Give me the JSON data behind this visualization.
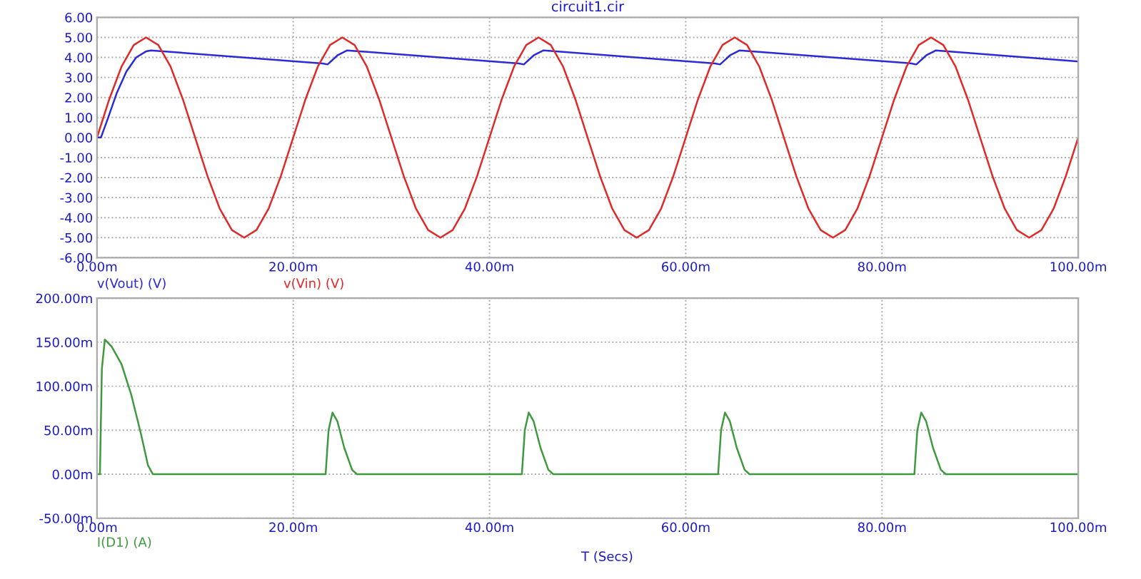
{
  "chart_data": [
    {
      "type": "line",
      "title": "circuit1.cir",
      "grid": true,
      "legend": "bottom left",
      "xlim": [
        0,
        100
      ],
      "xticks": [
        {
          "value": 0,
          "label": "0.00m"
        },
        {
          "value": 20,
          "label": "20.00m"
        },
        {
          "value": 40,
          "label": "40.00m"
        },
        {
          "value": 60,
          "label": "60.00m"
        },
        {
          "value": 80,
          "label": "80.00m"
        },
        {
          "value": 100,
          "label": "100.00m"
        }
      ],
      "ylim": [
        -6,
        6
      ],
      "yticks": [
        {
          "value": -6,
          "label": "-6.00"
        },
        {
          "value": -5,
          "label": "-5.00"
        },
        {
          "value": -4,
          "label": "-4.00"
        },
        {
          "value": -3,
          "label": "-3.00"
        },
        {
          "value": -2,
          "label": "-2.00"
        },
        {
          "value": -1,
          "label": "-1.00"
        },
        {
          "value": 0,
          "label": "0.00"
        },
        {
          "value": 1,
          "label": "1.00"
        },
        {
          "value": 2,
          "label": "2.00"
        },
        {
          "value": 3,
          "label": "3.00"
        },
        {
          "value": 4,
          "label": "4.00"
        },
        {
          "value": 5,
          "label": "5.00"
        },
        {
          "value": 6,
          "label": "6.00"
        }
      ],
      "series": [
        {
          "name": "v(Vout) (V)",
          "color": "#2b2bd6",
          "x": [
            0,
            0.4,
            1,
            2,
            3,
            4,
            5,
            5.5,
            23,
            23.5,
            24.5,
            25.5,
            43,
            43.5,
            44.5,
            45.5,
            63,
            63.5,
            64.5,
            65.5,
            83,
            83.5,
            84.5,
            85.5,
            100
          ],
          "values": [
            0,
            0,
            0.8,
            2.2,
            3.3,
            4.0,
            4.3,
            4.35,
            3.7,
            3.65,
            4.1,
            4.35,
            3.7,
            3.65,
            4.1,
            4.35,
            3.7,
            3.65,
            4.1,
            4.35,
            3.7,
            3.65,
            4.1,
            4.35,
            3.8
          ]
        },
        {
          "name": "v(Vin) (V)",
          "color": "#e02a2a",
          "x": [
            0,
            1.25,
            2.5,
            3.75,
            5,
            6.25,
            7.5,
            8.75,
            10,
            11.25,
            12.5,
            13.75,
            15,
            16.25,
            17.5,
            18.75,
            20,
            21.25,
            22.5,
            23.75,
            25,
            26.25,
            27.5,
            28.75,
            30,
            31.25,
            32.5,
            33.75,
            35,
            36.25,
            37.5,
            38.75,
            40,
            41.25,
            42.5,
            43.75,
            45,
            46.25,
            47.5,
            48.75,
            50,
            51.25,
            52.5,
            53.75,
            55,
            56.25,
            57.5,
            58.75,
            60,
            61.25,
            62.5,
            63.75,
            65,
            66.25,
            67.5,
            68.75,
            70,
            71.25,
            72.5,
            73.75,
            75,
            76.25,
            77.5,
            78.75,
            80,
            81.25,
            82.5,
            83.75,
            85,
            86.25,
            87.5,
            88.75,
            90,
            91.25,
            92.5,
            93.75,
            95,
            96.25,
            97.5,
            98.75,
            100
          ],
          "values": [
            0,
            1.91,
            3.54,
            4.62,
            5,
            4.62,
            3.54,
            1.91,
            0,
            -1.91,
            -3.54,
            -4.62,
            -5,
            -4.62,
            -3.54,
            -1.91,
            0,
            1.91,
            3.54,
            4.62,
            5,
            4.62,
            3.54,
            1.91,
            0,
            -1.91,
            -3.54,
            -4.62,
            -5,
            -4.62,
            -3.54,
            -1.91,
            0,
            1.91,
            3.54,
            4.62,
            5,
            4.62,
            3.54,
            1.91,
            0,
            -1.91,
            -3.54,
            -4.62,
            -5,
            -4.62,
            -3.54,
            -1.91,
            0,
            1.91,
            3.54,
            4.62,
            5,
            4.62,
            3.54,
            1.91,
            0,
            -1.91,
            -3.54,
            -4.62,
            -5,
            -4.62,
            -3.54,
            -1.91,
            0,
            1.91,
            3.54,
            4.62,
            5,
            4.62,
            3.54,
            1.91,
            0,
            -1.91,
            -3.54,
            -4.62,
            -5,
            -4.62,
            -3.54,
            -1.91,
            0
          ]
        }
      ]
    },
    {
      "type": "line",
      "xlabel": "T (Secs)",
      "grid": true,
      "legend": "bottom left",
      "xlim": [
        0,
        100
      ],
      "xticks": [
        {
          "value": 0,
          "label": "0.00m"
        },
        {
          "value": 20,
          "label": "20.00m"
        },
        {
          "value": 40,
          "label": "40.00m"
        },
        {
          "value": 60,
          "label": "60.00m"
        },
        {
          "value": 80,
          "label": "80.00m"
        },
        {
          "value": 100,
          "label": "100.00m"
        }
      ],
      "ylim": [
        -50,
        200
      ],
      "yticks": [
        {
          "value": -50,
          "label": "-50.00m"
        },
        {
          "value": 0,
          "label": "0.00m"
        },
        {
          "value": 50,
          "label": "50.00m"
        },
        {
          "value": 100,
          "label": "100.00m"
        },
        {
          "value": 150,
          "label": "150.00m"
        },
        {
          "value": 200,
          "label": "200.00m"
        }
      ],
      "series": [
        {
          "name": "I(D1) (A)",
          "color": "#3f9a3f",
          "x": [
            0,
            0.3,
            0.5,
            0.8,
            1.5,
            2.5,
            3.5,
            4.5,
            5.2,
            5.7,
            23.3,
            23.6,
            24,
            24.5,
            25.2,
            26,
            26.5,
            43.3,
            43.6,
            44,
            44.5,
            45.2,
            46,
            46.5,
            63.3,
            63.6,
            64,
            64.5,
            65.2,
            66,
            66.5,
            83.3,
            83.6,
            84,
            84.5,
            85.2,
            86,
            86.5,
            100
          ],
          "values": [
            0,
            0,
            120,
            153,
            145,
            125,
            90,
            45,
            10,
            0,
            0,
            50,
            70,
            60,
            30,
            5,
            0,
            0,
            50,
            70,
            60,
            30,
            5,
            0,
            0,
            50,
            70,
            60,
            30,
            5,
            0,
            0,
            50,
            70,
            60,
            30,
            5,
            0,
            0
          ]
        }
      ]
    }
  ]
}
